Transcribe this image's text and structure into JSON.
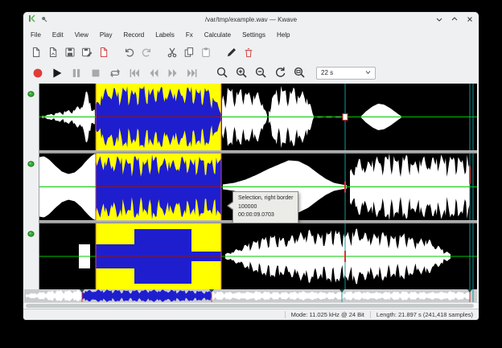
{
  "titlebar": {
    "title": "/var/tmp/example.wav — Kwave",
    "icons": [
      "kwave-app-icon",
      "pin-icon",
      "minimize-icon",
      "maximize-icon",
      "close-icon"
    ]
  },
  "menubar": {
    "items": [
      {
        "label": "File"
      },
      {
        "label": "Edit"
      },
      {
        "label": "View"
      },
      {
        "label": "Play"
      },
      {
        "label": "Record"
      },
      {
        "label": "Labels"
      },
      {
        "label": "Fx"
      },
      {
        "label": "Calculate"
      },
      {
        "label": "Settings"
      },
      {
        "label": "Help"
      }
    ]
  },
  "toolbar": {
    "buttons": [
      "file-new-icon",
      "file-open-icon",
      "file-save-icon",
      "file-save-as-icon",
      "file-close-icon",
      "undo-icon",
      "redo-icon",
      "cut-icon",
      "copy-icon",
      "paste-icon",
      "pen-icon",
      "delete-icon"
    ]
  },
  "transport": {
    "buttons": [
      "record-icon",
      "play-icon",
      "pause-icon",
      "stop-icon",
      "loop-icon",
      "skip-start-icon",
      "rewind-icon",
      "fast-forward-icon",
      "skip-end-icon",
      "zoom-selection-icon",
      "zoom-in-icon",
      "zoom-out-icon",
      "zoom-revert-icon",
      "zoom-all-icon"
    ],
    "zoom_combo": {
      "value": "22 s"
    }
  },
  "waveform": {
    "channel_count": 3,
    "selection_color": "#ffff00",
    "selected_wave_color": "#1e1ecf",
    "wave_color": "#ffffff",
    "zero_line_color": "#00c800",
    "cursor_color": "#0e9a9a"
  },
  "tooltip": {
    "title": "Selection, right border",
    "samples": "100000",
    "time": "00:00:09.0703"
  },
  "statusbar": {
    "mode": "Mode: 11.025 kHz @ 24 Bit",
    "length": "Length: 21.897 s (241,418 samples)"
  }
}
